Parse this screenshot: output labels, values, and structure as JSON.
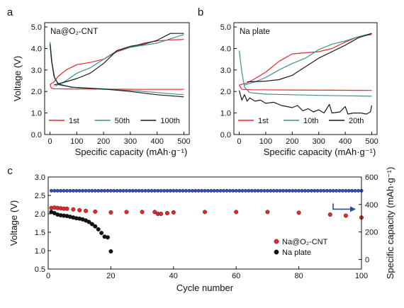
{
  "chart_data": [
    {
      "panel": "a",
      "type": "line",
      "annotation": "Na@O₂-CNT",
      "xlabel": "Specific capacity (mAh·g⁻¹)",
      "ylabel": "Voltage (V)",
      "xlim": [
        -20,
        520
      ],
      "ylim": [
        0,
        5.2
      ],
      "xticks": [
        "0",
        "100",
        "200",
        "300",
        "400",
        "500"
      ],
      "yticks": [
        "0.0",
        "1.0",
        "2.0",
        "3.0",
        "4.0",
        "5.0"
      ],
      "legend_position": "bottom",
      "series": [
        {
          "name": "1st",
          "color": "#e8262d",
          "discharge": [
            [
              0,
              2.33
            ],
            [
              5,
              2.16
            ],
            [
              15,
              2.13
            ],
            [
              60,
              2.12
            ],
            [
              200,
              2.11
            ],
            [
              350,
              2.1
            ],
            [
              500,
              2.1
            ]
          ],
          "charge": [
            [
              0,
              2.33
            ],
            [
              15,
              2.45
            ],
            [
              30,
              2.7
            ],
            [
              60,
              3.0
            ],
            [
              100,
              3.25
            ],
            [
              150,
              3.35
            ],
            [
              200,
              3.5
            ],
            [
              250,
              3.85
            ],
            [
              300,
              4.05
            ],
            [
              350,
              4.25
            ],
            [
              400,
              4.35
            ],
            [
              450,
              4.4
            ],
            [
              500,
              4.42
            ]
          ]
        },
        {
          "name": "50th",
          "color": "#3b8f8f",
          "discharge": [
            [
              0,
              4.3
            ],
            [
              8,
              3.3
            ],
            [
              18,
              2.6
            ],
            [
              35,
              2.3
            ],
            [
              100,
              2.18
            ],
            [
              200,
              2.1
            ],
            [
              300,
              2.05
            ],
            [
              400,
              1.95
            ],
            [
              500,
              1.85
            ]
          ],
          "charge": [
            [
              20,
              2.25
            ],
            [
              60,
              2.5
            ],
            [
              100,
              2.85
            ],
            [
              150,
              3.1
            ],
            [
              200,
              3.5
            ],
            [
              250,
              3.9
            ],
            [
              300,
              4.05
            ],
            [
              350,
              4.15
            ],
            [
              400,
              4.25
            ],
            [
              450,
              4.45
            ],
            [
              500,
              4.65
            ]
          ]
        },
        {
          "name": "100th",
          "color": "#1a1a1a",
          "discharge": [
            [
              0,
              4.2
            ],
            [
              6,
              3.4
            ],
            [
              15,
              2.7
            ],
            [
              30,
              2.35
            ],
            [
              80,
              2.2
            ],
            [
              200,
              2.12
            ],
            [
              300,
              2.0
            ],
            [
              400,
              1.85
            ],
            [
              500,
              1.75
            ]
          ],
          "charge": [
            [
              15,
              2.3
            ],
            [
              50,
              2.42
            ],
            [
              100,
              2.6
            ],
            [
              150,
              2.85
            ],
            [
              200,
              3.3
            ],
            [
              250,
              3.9
            ],
            [
              300,
              4.1
            ],
            [
              350,
              4.2
            ],
            [
              400,
              4.38
            ],
            [
              450,
              4.7
            ],
            [
              500,
              4.7
            ]
          ]
        }
      ]
    },
    {
      "panel": "b",
      "type": "line",
      "annotation": "Na plate",
      "xlabel": "Specific capacity (mAh·g⁻¹)",
      "ylabel": "",
      "xlim": [
        -20,
        520
      ],
      "ylim": [
        0,
        5.2
      ],
      "xticks": [
        "0",
        "100",
        "200",
        "300",
        "400",
        "500"
      ],
      "yticks": [
        "0.0",
        "1.0",
        "2.0",
        "3.0",
        "4.0",
        "5.0"
      ],
      "legend_position": "bottom",
      "series": [
        {
          "name": "1st",
          "color": "#e8262d",
          "discharge": [
            [
              0,
              2.3
            ],
            [
              10,
              2.1
            ],
            [
              50,
              2.08
            ],
            [
              200,
              2.07
            ],
            [
              350,
              2.06
            ],
            [
              500,
              2.05
            ]
          ],
          "charge": [
            [
              0,
              2.3
            ],
            [
              30,
              2.4
            ],
            [
              60,
              2.6
            ],
            [
              100,
              2.9
            ],
            [
              150,
              3.4
            ],
            [
              200,
              3.75
            ],
            [
              250,
              3.8
            ],
            [
              300,
              3.85
            ],
            [
              350,
              4.0
            ],
            [
              400,
              4.3
            ],
            [
              450,
              4.55
            ],
            [
              500,
              4.65
            ]
          ]
        },
        {
          "name": "10th",
          "color": "#3b8f8f",
          "discharge": [
            [
              0,
              3.9
            ],
            [
              10,
              2.9
            ],
            [
              20,
              2.2
            ],
            [
              40,
              1.95
            ],
            [
              100,
              1.88
            ],
            [
              200,
              1.85
            ],
            [
              300,
              1.82
            ],
            [
              400,
              1.8
            ],
            [
              500,
              1.78
            ]
          ],
          "charge": [
            [
              20,
              2.3
            ],
            [
              60,
              2.45
            ],
            [
              100,
              2.65
            ],
            [
              150,
              3.0
            ],
            [
              200,
              3.3
            ],
            [
              250,
              3.55
            ],
            [
              300,
              3.95
            ],
            [
              350,
              4.2
            ],
            [
              400,
              4.35
            ],
            [
              450,
              4.55
            ],
            [
              500,
              4.7
            ]
          ]
        },
        {
          "name": "20th",
          "color": "#1a1a1a",
          "discharge": [
            [
              0,
              2.05
            ],
            [
              10,
              1.6
            ],
            [
              20,
              1.85
            ],
            [
              30,
              1.55
            ],
            [
              40,
              1.7
            ],
            [
              60,
              1.55
            ],
            [
              80,
              1.6
            ],
            [
              100,
              1.45
            ],
            [
              130,
              1.5
            ],
            [
              160,
              1.35
            ],
            [
              200,
              1.25
            ],
            [
              220,
              1.35
            ],
            [
              240,
              1.1
            ],
            [
              260,
              1.2
            ],
            [
              280,
              1.05
            ],
            [
              300,
              1.15
            ],
            [
              320,
              1.0
            ],
            [
              340,
              1.4
            ],
            [
              350,
              1.0
            ],
            [
              380,
              1.05
            ],
            [
              400,
              1.3
            ],
            [
              410,
              0.95
            ],
            [
              430,
              1.0
            ],
            [
              460,
              1.0
            ],
            [
              480,
              0.95
            ],
            [
              495,
              1.05
            ],
            [
              500,
              1.35
            ]
          ],
          "charge": [
            [
              30,
              2.45
            ],
            [
              100,
              2.48
            ],
            [
              150,
              2.55
            ],
            [
              200,
              2.75
            ],
            [
              250,
              3.15
            ],
            [
              300,
              3.55
            ],
            [
              350,
              3.85
            ],
            [
              400,
              4.15
            ],
            [
              450,
              4.5
            ],
            [
              500,
              4.7
            ]
          ]
        }
      ]
    },
    {
      "panel": "c",
      "type": "scatter",
      "xlabel": "Cycle number",
      "ylabel": "Voltage (V)",
      "y2label": "Specific capacity (mAh·g⁻¹)",
      "xlim": [
        0,
        100
      ],
      "ylim": [
        0.5,
        3.0
      ],
      "y2lim": [
        -70,
        600
      ],
      "xticks": [
        "0",
        "20",
        "40",
        "60",
        "80",
        "100"
      ],
      "yticks": [
        "0.5",
        "1.0",
        "1.5",
        "2.0",
        "2.5",
        "3.0"
      ],
      "y2ticks": [
        "0",
        "200",
        "400",
        "600"
      ],
      "legend_position": "right",
      "capacity_series": {
        "color": "#3b4fb0",
        "value": 500,
        "cycles": [
          1,
          100
        ]
      },
      "series": [
        {
          "name": "Na@O₂-CNT",
          "color": "#e8262d",
          "points": [
            [
              1,
              2.16
            ],
            [
              2,
              2.17
            ],
            [
              3,
              2.16
            ],
            [
              4,
              2.15
            ],
            [
              5,
              2.14
            ],
            [
              6,
              2.14
            ],
            [
              8,
              2.12
            ],
            [
              10,
              2.1
            ],
            [
              12,
              2.08
            ],
            [
              15,
              2.06
            ],
            [
              20,
              2.04
            ],
            [
              25,
              2.05
            ],
            [
              30,
              2.05
            ],
            [
              34,
              2.05
            ],
            [
              35,
              2.0
            ],
            [
              36,
              2.0
            ],
            [
              38,
              2.02
            ],
            [
              40,
              2.04
            ],
            [
              50,
              2.05
            ],
            [
              60,
              2.05
            ],
            [
              70,
              2.05
            ],
            [
              80,
              2.03
            ],
            [
              90,
              1.98
            ],
            [
              95,
              1.95
            ],
            [
              100,
              1.9
            ]
          ]
        },
        {
          "name": "Na plate",
          "color": "#111111",
          "points": [
            [
              1,
              2.05
            ],
            [
              2,
              2.02
            ],
            [
              3,
              1.98
            ],
            [
              4,
              1.96
            ],
            [
              5,
              1.95
            ],
            [
              6,
              1.94
            ],
            [
              7,
              1.92
            ],
            [
              8,
              1.9
            ],
            [
              9,
              1.88
            ],
            [
              10,
              1.87
            ],
            [
              11,
              1.85
            ],
            [
              12,
              1.82
            ],
            [
              13,
              1.78
            ],
            [
              14,
              1.72
            ],
            [
              15,
              1.66
            ],
            [
              16,
              1.58
            ],
            [
              17,
              1.48
            ],
            [
              18,
              1.38
            ],
            [
              19,
              1.36
            ],
            [
              20,
              0.98
            ]
          ]
        }
      ]
    }
  ]
}
